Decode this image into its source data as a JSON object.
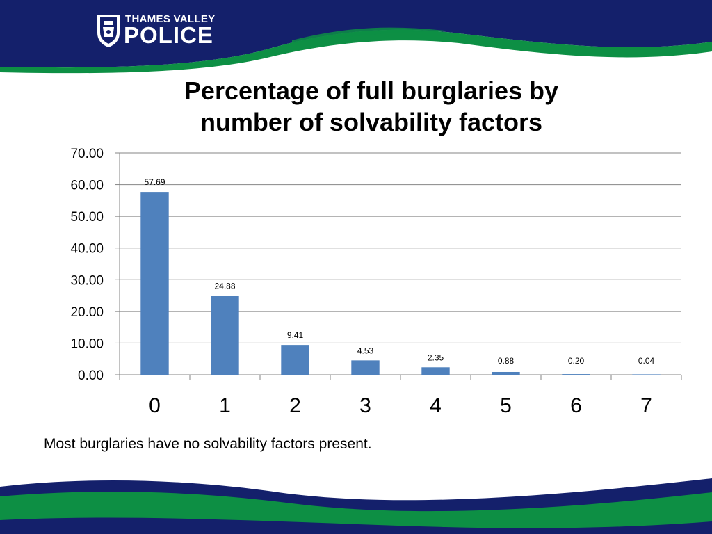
{
  "logo": {
    "line1": "THAMES VALLEY",
    "line2": "POLICE"
  },
  "caption": "Most burglaries have no solvability factors present.",
  "colors": {
    "navy": "#14206b",
    "green": "#0d8f44",
    "bar": "#4f81bd"
  },
  "chart_data": {
    "type": "bar",
    "title": "Percentage of full burglaries by number of solvability factors",
    "title_lines": [
      "Percentage of full burglaries by",
      "number of solvability factors"
    ],
    "xlabel": "",
    "ylabel": "",
    "categories": [
      "0",
      "1",
      "2",
      "3",
      "4",
      "5",
      "6",
      "7"
    ],
    "values": [
      57.69,
      24.88,
      9.41,
      4.53,
      2.35,
      0.88,
      0.2,
      0.04
    ],
    "data_labels": [
      "57.69",
      "24.88",
      "9.41",
      "4.53",
      "2.35",
      "0.88",
      "0.20",
      "0.04"
    ],
    "ylim": [
      0,
      70
    ],
    "yticks": [
      "0.00",
      "10.00",
      "20.00",
      "30.00",
      "40.00",
      "50.00",
      "60.00",
      "70.00"
    ],
    "grid": true,
    "legend": "none"
  }
}
